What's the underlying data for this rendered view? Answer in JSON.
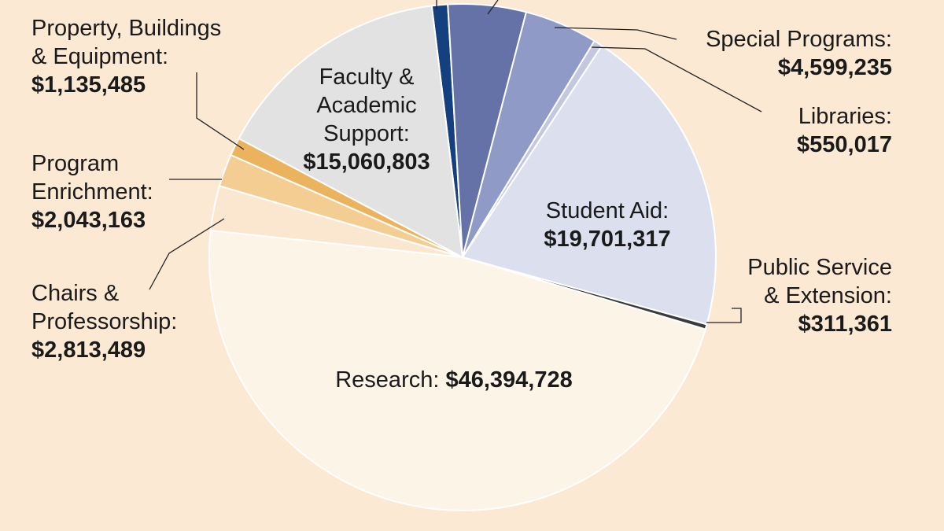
{
  "chart_data": {
    "type": "pie",
    "categories": [
      null,
      null,
      "Special Programs:",
      "Libraries:",
      "Student Aid:",
      "Public Service\n& Extension:",
      "Research:",
      "Chairs &\nProfessorship:",
      "Program\nEnrichment:",
      "Property, Buildings\n& Equipment:",
      "Faculty &\nAcademic\nSupport:"
    ],
    "values": [
      1000000,
      4900000,
      4599235,
      550017,
      19701317,
      311361,
      46394728,
      2813489,
      2043163,
      1135485,
      15060803
    ],
    "value_labels": [
      null,
      null,
      "$4,599,235",
      "$550,017",
      "$19,701,317",
      "$311,361",
      "$46,394,728",
      "$2,813,489",
      "$2,043,163",
      "$1,135,485",
      "$15,060,803"
    ],
    "colors": [
      "#15407f",
      "#6572a8",
      "#8f9ac6",
      "#c3c8df",
      "#dcdfee",
      "#3b3b3b",
      "#fdf4e8",
      "#fbe7cf",
      "#f4cd93",
      "#ebb35d",
      "#e2e2e2"
    ]
  }
}
